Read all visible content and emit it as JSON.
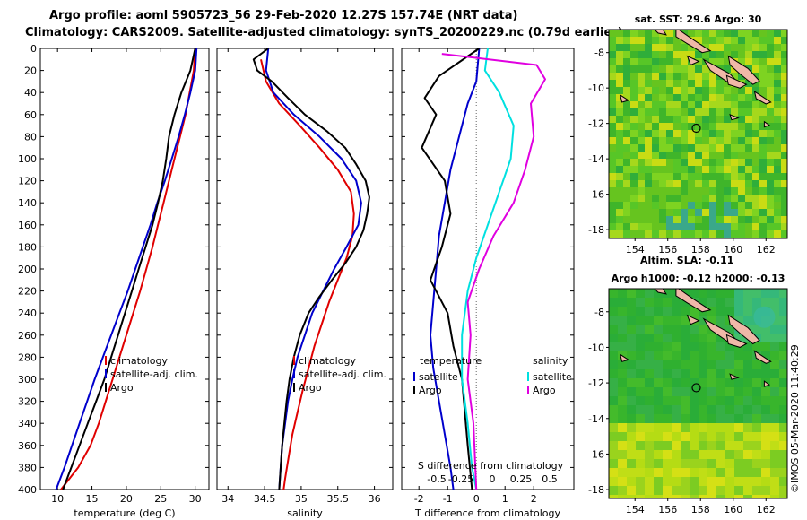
{
  "header": {
    "line1": "Argo profile: aoml 5905723_56 29-Feb-2020 12.27S 157.74E (NRT data)",
    "line2": "Climatology: CARS2009. Satellite-adjusted climatology: synTS_20200229.nc (0.79d earlier)"
  },
  "colors": {
    "climatology": "#e00000",
    "satellite_adj": "#0000cc",
    "argo": "#000000",
    "salinity": "#e000e0",
    "sat_salinity": "#00e0e0",
    "map_bg": "#4cc02a",
    "land": "#f0b8a8"
  },
  "chart_data": [
    {
      "type": "line",
      "id": "temperature",
      "xlabel": "temperature (deg C)",
      "ylabel": "depth",
      "xlim": [
        7.5,
        32
      ],
      "ylim": [
        400,
        0
      ],
      "xticks": [
        10,
        15,
        20,
        25,
        30
      ],
      "yticks": [
        0,
        20,
        40,
        60,
        80,
        100,
        120,
        140,
        160,
        180,
        200,
        220,
        240,
        260,
        280,
        300,
        320,
        340,
        360,
        380,
        400
      ],
      "legend": {
        "position": "lower-right",
        "entries": [
          "climatology",
          "satellite-adj. clim.",
          "Argo"
        ]
      },
      "series": [
        {
          "name": "climatology",
          "color": "#e00000",
          "points": [
            [
              30,
              0
            ],
            [
              29.8,
              20
            ],
            [
              29.2,
              40
            ],
            [
              28.6,
              60
            ],
            [
              27.8,
              80
            ],
            [
              27,
              100
            ],
            [
              26.2,
              120
            ],
            [
              25.4,
              140
            ],
            [
              24.6,
              160
            ],
            [
              23.8,
              180
            ],
            [
              22.9,
              200
            ],
            [
              22,
              220
            ],
            [
              21,
              240
            ],
            [
              20,
              260
            ],
            [
              19,
              280
            ],
            [
              18,
              300
            ],
            [
              17,
              320
            ],
            [
              16,
              340
            ],
            [
              14.8,
              360
            ],
            [
              13,
              380
            ],
            [
              10.5,
              400
            ]
          ]
        },
        {
          "name": "satellite-adj. clim.",
          "color": "#0000cc",
          "points": [
            [
              30.2,
              0
            ],
            [
              30,
              20
            ],
            [
              29.3,
              40
            ],
            [
              28.5,
              60
            ],
            [
              27.6,
              80
            ],
            [
              26.6,
              100
            ],
            [
              25.6,
              120
            ],
            [
              24.5,
              140
            ],
            [
              23.5,
              160
            ],
            [
              22.4,
              180
            ],
            [
              21.3,
              200
            ],
            [
              20.2,
              220
            ],
            [
              19,
              240
            ],
            [
              17.8,
              260
            ],
            [
              16.6,
              280
            ],
            [
              15.4,
              300
            ],
            [
              14.3,
              320
            ],
            [
              13.2,
              340
            ],
            [
              12.1,
              360
            ],
            [
              11,
              380
            ],
            [
              9.8,
              400
            ]
          ]
        },
        {
          "name": "Argo",
          "color": "#000000",
          "points": [
            [
              30,
              0
            ],
            [
              29.3,
              20
            ],
            [
              28,
              40
            ],
            [
              27,
              60
            ],
            [
              26.2,
              80
            ],
            [
              25.8,
              100
            ],
            [
              25.3,
              120
            ],
            [
              24.6,
              140
            ],
            [
              23.8,
              160
            ],
            [
              22.8,
              180
            ],
            [
              21.8,
              200
            ],
            [
              20.8,
              220
            ],
            [
              19.8,
              240
            ],
            [
              18.8,
              260
            ],
            [
              17.8,
              280
            ],
            [
              16.8,
              300
            ],
            [
              15.6,
              320
            ],
            [
              14.4,
              340
            ],
            [
              13.2,
              360
            ],
            [
              12,
              380
            ],
            [
              10.8,
              400
            ]
          ]
        }
      ]
    },
    {
      "type": "line",
      "id": "salinity",
      "xlabel": "salinity",
      "xlim": [
        33.85,
        36.25
      ],
      "ylim": [
        400,
        0
      ],
      "xticks": [
        34,
        34.5,
        35,
        35.5,
        36
      ],
      "legend": {
        "position": "lower-right",
        "entries": [
          "climatology",
          "satellite-adj. clim.",
          "Argo"
        ]
      },
      "series": [
        {
          "name": "climatology",
          "color": "#e00000",
          "points": [
            [
              34.45,
              10
            ],
            [
              34.52,
              30
            ],
            [
              34.7,
              50
            ],
            [
              34.98,
              70
            ],
            [
              35.25,
              90
            ],
            [
              35.5,
              110
            ],
            [
              35.68,
              130
            ],
            [
              35.72,
              150
            ],
            [
              35.7,
              170
            ],
            [
              35.62,
              190
            ],
            [
              35.5,
              210
            ],
            [
              35.38,
              230
            ],
            [
              35.28,
              250
            ],
            [
              35.18,
              270
            ],
            [
              35.1,
              290
            ],
            [
              35.02,
              310
            ],
            [
              34.95,
              330
            ],
            [
              34.88,
              350
            ],
            [
              34.83,
              370
            ],
            [
              34.78,
              390
            ],
            [
              34.76,
              400
            ]
          ]
        },
        {
          "name": "satellite-adj. clim.",
          "color": "#0000cc",
          "points": [
            [
              34.55,
              0
            ],
            [
              34.52,
              20
            ],
            [
              34.62,
              40
            ],
            [
              34.9,
              60
            ],
            [
              35.25,
              80
            ],
            [
              35.55,
              100
            ],
            [
              35.75,
              120
            ],
            [
              35.82,
              140
            ],
            [
              35.78,
              160
            ],
            [
              35.62,
              180
            ],
            [
              35.45,
              200
            ],
            [
              35.3,
              220
            ],
            [
              35.15,
              240
            ],
            [
              35.05,
              260
            ],
            [
              34.95,
              280
            ],
            [
              34.88,
              300
            ],
            [
              34.82,
              320
            ],
            [
              34.78,
              340
            ],
            [
              34.74,
              360
            ],
            [
              34.72,
              380
            ],
            [
              34.7,
              400
            ]
          ]
        },
        {
          "name": "Argo",
          "color": "#000000",
          "points": [
            [
              34.55,
              0
            ],
            [
              34.35,
              10
            ],
            [
              34.4,
              20
            ],
            [
              34.6,
              30
            ],
            [
              34.82,
              45
            ],
            [
              35.05,
              60
            ],
            [
              35.35,
              75
            ],
            [
              35.6,
              90
            ],
            [
              35.75,
              105
            ],
            [
              35.88,
              120
            ],
            [
              35.93,
              135
            ],
            [
              35.9,
              150
            ],
            [
              35.85,
              165
            ],
            [
              35.75,
              180
            ],
            [
              35.6,
              195
            ],
            [
              35.42,
              210
            ],
            [
              35.25,
              225
            ],
            [
              35.1,
              240
            ],
            [
              34.98,
              260
            ],
            [
              34.9,
              280
            ],
            [
              34.84,
              300
            ],
            [
              34.8,
              320
            ],
            [
              34.77,
              340
            ],
            [
              34.74,
              360
            ],
            [
              34.72,
              380
            ],
            [
              34.7,
              400
            ]
          ]
        }
      ]
    },
    {
      "type": "line",
      "id": "difference",
      "xlabel": "T difference from climatology",
      "x2label": "S difference from climatology",
      "xlim": [
        -2.6,
        3.4
      ],
      "ylim": [
        400,
        0
      ],
      "xticks": [
        -2,
        -1,
        0,
        1,
        2
      ],
      "s_xticks": [
        "-0.5",
        "-0.25",
        "0",
        "0.25",
        "0.5"
      ],
      "legend_temperature": {
        "title": "temperature",
        "entries": [
          "satellite",
          "Argo"
        ]
      },
      "legend_salinity": {
        "title": "salinity",
        "entries": [
          "satellite",
          "Argo"
        ]
      },
      "series": [
        {
          "name": "temperature satellite",
          "color": "#0000cc",
          "points": [
            [
              0.1,
              0
            ],
            [
              0,
              30
            ],
            [
              -0.3,
              50
            ],
            [
              -0.6,
              80
            ],
            [
              -0.9,
              110
            ],
            [
              -1.1,
              140
            ],
            [
              -1.3,
              170
            ],
            [
              -1.4,
              200
            ],
            [
              -1.5,
              230
            ],
            [
              -1.6,
              260
            ],
            [
              -1.5,
              290
            ],
            [
              -1.3,
              320
            ],
            [
              -1.1,
              350
            ],
            [
              -0.9,
              380
            ],
            [
              -0.8,
              400
            ]
          ]
        },
        {
          "name": "temperature Argo",
          "color": "#000000",
          "points": [
            [
              0.1,
              0
            ],
            [
              -1.3,
              25
            ],
            [
              -1.8,
              45
            ],
            [
              -1.4,
              60
            ],
            [
              -1.9,
              90
            ],
            [
              -1.1,
              120
            ],
            [
              -0.9,
              150
            ],
            [
              -1.2,
              180
            ],
            [
              -1.6,
              210
            ],
            [
              -1,
              240
            ],
            [
              -0.8,
              270
            ],
            [
              -0.5,
              300
            ],
            [
              -0.4,
              330
            ],
            [
              -0.3,
              360
            ],
            [
              -0.15,
              400
            ]
          ]
        },
        {
          "name": "salinity satellite",
          "color": "#00e0e0",
          "points": [
            [
              0.4,
              0
            ],
            [
              0.3,
              20
            ],
            [
              0.8,
              40
            ],
            [
              1.3,
              70
            ],
            [
              1.2,
              100
            ],
            [
              0.8,
              130
            ],
            [
              0.4,
              160
            ],
            [
              0,
              190
            ],
            [
              -0.3,
              220
            ],
            [
              -0.5,
              260
            ],
            [
              -0.5,
              300
            ],
            [
              -0.3,
              340
            ],
            [
              -0.15,
              380
            ],
            [
              0,
              400
            ]
          ]
        },
        {
          "name": "salinity Argo",
          "color": "#e000e0",
          "points": [
            [
              -1.2,
              5
            ],
            [
              2.1,
              15
            ],
            [
              2.4,
              28
            ],
            [
              1.9,
              50
            ],
            [
              2,
              80
            ],
            [
              1.7,
              110
            ],
            [
              1.3,
              140
            ],
            [
              0.6,
              170
            ],
            [
              0.1,
              200
            ],
            [
              -0.3,
              230
            ],
            [
              -0.2,
              260
            ],
            [
              -0.3,
              300
            ],
            [
              -0.1,
              340
            ],
            [
              0,
              400
            ]
          ]
        }
      ]
    },
    {
      "type": "heatmap",
      "id": "sat_sst_map",
      "title": "sat. SST: 29.6 Argo: 30",
      "footer": "Altim. SLA: -0.11",
      "xticks": [
        154,
        156,
        158,
        160,
        162
      ],
      "yticks": [
        -8,
        -10,
        -12,
        -14,
        -16,
        -18
      ],
      "xlim": [
        152.4,
        163.3
      ],
      "ylim": [
        -18.5,
        -6.7
      ],
      "argo_position": [
        157.74,
        -12.27
      ]
    },
    {
      "type": "heatmap",
      "id": "altimetry_map",
      "title": "Argo h1000: -0.12 h2000: -0.13",
      "xticks": [
        154,
        156,
        158,
        160,
        162
      ],
      "yticks": [
        -8,
        -10,
        -12,
        -14,
        -16,
        -18
      ],
      "xlim": [
        152.4,
        163.3
      ],
      "ylim": [
        -18.5,
        -6.7
      ],
      "argo_position": [
        157.74,
        -12.27
      ]
    }
  ],
  "credit": "©IMOS 05-Mar-2020 11:40:29"
}
